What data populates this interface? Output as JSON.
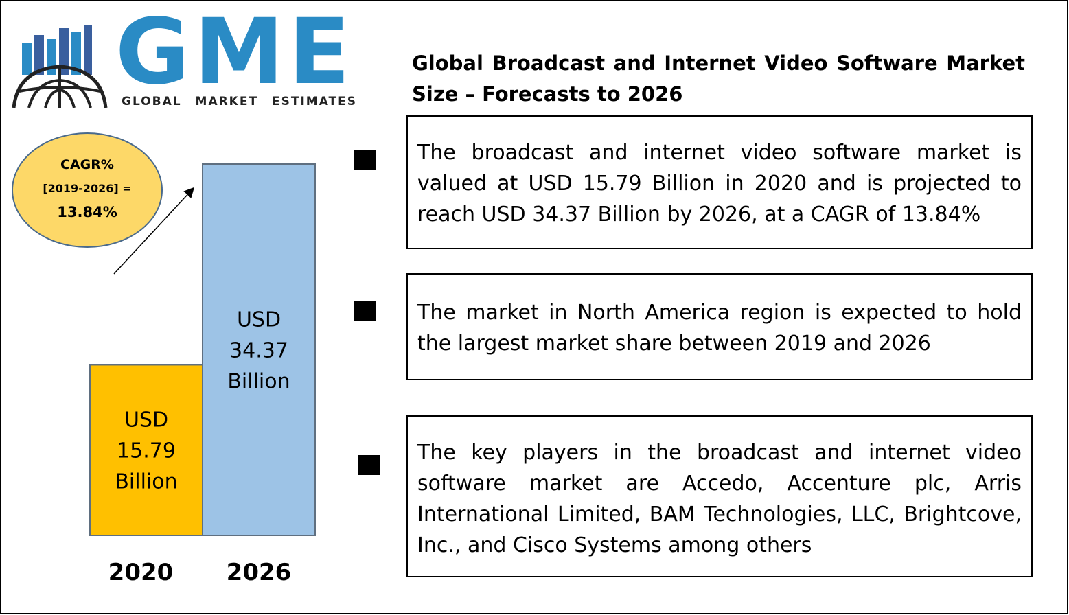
{
  "logo": {
    "letters": "GME",
    "tagline": "GLOBAL MARKET ESTIMATES",
    "brand_color": "#2a8bc5"
  },
  "title": "Global Broadcast and Internet Video Software Market Size – Forecasts to 2026",
  "cagr": {
    "label": "CAGR%",
    "period": "[2019-2026] =",
    "value": "13.84%"
  },
  "chart_data": {
    "type": "bar",
    "categories": [
      "2020",
      "2026"
    ],
    "values": [
      15.79,
      34.37
    ],
    "unit": "USD Billion",
    "data_labels": [
      [
        "USD",
        "15.79",
        "Billion"
      ],
      [
        "USD",
        "34.37",
        "Billion"
      ]
    ],
    "colors": [
      "#ffc000",
      "#9dc3e6"
    ],
    "grid": false
  },
  "highlights": [
    {
      "text": "The broadcast and internet video software market is valued at USD 15.79 Billion in 2020 and is projected to reach USD 34.37 Billion by 2026, at a CAGR of 13.84%"
    },
    {
      "text": "The market in North America region is expected to hold the largest market share between 2019 and 2026"
    },
    {
      "text": "The key players in the broadcast and internet video software market are Accedo, Accenture plc, Arris International Limited, BAM Technologies, LLC, Brightcove, Inc., and Cisco Systems among others"
    }
  ]
}
